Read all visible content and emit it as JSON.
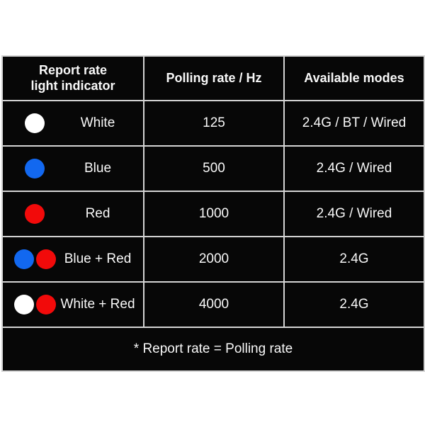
{
  "page": {
    "background": "#ffffff"
  },
  "table": {
    "style": {
      "cell_background": "#070707",
      "border_color": "#d4d4d4",
      "text_color": "#f8f8f8"
    },
    "dot_colors": {
      "white": "#ffffff",
      "blue": "#1268f0",
      "red": "#f20a0a"
    },
    "header": {
      "col1_line1": "Report rate",
      "col1_line2": "light indicator",
      "col2": "Polling rate / Hz",
      "col3": "Available modes"
    },
    "rows": [
      {
        "dots": [
          "white"
        ],
        "indicator": "White",
        "polling": "125",
        "modes": "2.4G / BT / Wired"
      },
      {
        "dots": [
          "blue"
        ],
        "indicator": "Blue",
        "polling": "500",
        "modes": "2.4G / Wired"
      },
      {
        "dots": [
          "red"
        ],
        "indicator": "Red",
        "polling": "1000",
        "modes": "2.4G / Wired"
      },
      {
        "dots": [
          "blue",
          "red"
        ],
        "indicator": "Blue + Red",
        "polling": "2000",
        "modes": "2.4G"
      },
      {
        "dots": [
          "white",
          "red"
        ],
        "indicator": "White + Red",
        "polling": "4000",
        "modes": "2.4G"
      }
    ],
    "footnote": "* Report rate = Polling rate"
  },
  "chart_data": {
    "type": "table",
    "title": "",
    "columns": [
      "Report rate light indicator",
      "Polling rate / Hz",
      "Available modes"
    ],
    "rows": [
      [
        "White",
        125,
        "2.4G / BT / Wired"
      ],
      [
        "Blue",
        500,
        "2.4G / Wired"
      ],
      [
        "Red",
        1000,
        "2.4G / Wired"
      ],
      [
        "Blue + Red",
        2000,
        "2.4G"
      ],
      [
        "White + Red",
        4000,
        "2.4G"
      ]
    ],
    "footnote": "* Report rate = Polling rate",
    "indicator_dot_colors": {
      "White": [
        "#ffffff"
      ],
      "Blue": [
        "#1268f0"
      ],
      "Red": [
        "#f20a0a"
      ],
      "Blue + Red": [
        "#1268f0",
        "#f20a0a"
      ],
      "White + Red": [
        "#ffffff",
        "#f20a0a"
      ]
    }
  }
}
